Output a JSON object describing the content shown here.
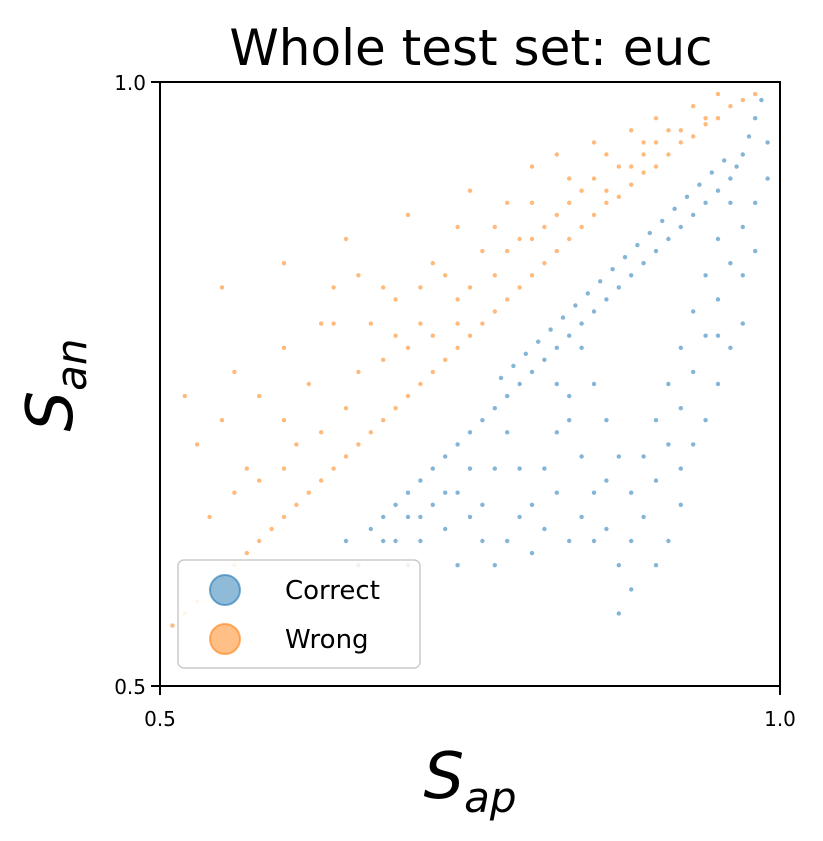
{
  "chart_data": {
    "type": "scatter",
    "title": "Whole test set: euc",
    "xlabel": {
      "main": "S",
      "sub": "ap"
    },
    "ylabel": {
      "main": "S",
      "sub": "an"
    },
    "xlim": [
      0.5,
      1.0
    ],
    "ylim": [
      0.5,
      1.0
    ],
    "xticks": [
      "0.5",
      "1.0"
    ],
    "yticks": [
      "0.5",
      "1.0"
    ],
    "grid": false,
    "legend_position": "lower-left",
    "series": [
      {
        "name": "Correct",
        "color": "#1f77b4",
        "points": [
          [
            0.985,
            0.985
          ],
          [
            0.98,
            0.97
          ],
          [
            0.975,
            0.955
          ],
          [
            0.97,
            0.94
          ],
          [
            0.965,
            0.93
          ],
          [
            0.96,
            0.92
          ],
          [
            0.955,
            0.935
          ],
          [
            0.95,
            0.91
          ],
          [
            0.945,
            0.925
          ],
          [
            0.94,
            0.9
          ],
          [
            0.935,
            0.915
          ],
          [
            0.93,
            0.89
          ],
          [
            0.925,
            0.905
          ],
          [
            0.92,
            0.88
          ],
          [
            0.915,
            0.895
          ],
          [
            0.91,
            0.87
          ],
          [
            0.905,
            0.885
          ],
          [
            0.9,
            0.86
          ],
          [
            0.895,
            0.875
          ],
          [
            0.89,
            0.85
          ],
          [
            0.885,
            0.865
          ],
          [
            0.88,
            0.84
          ],
          [
            0.875,
            0.855
          ],
          [
            0.87,
            0.83
          ],
          [
            0.865,
            0.845
          ],
          [
            0.86,
            0.82
          ],
          [
            0.855,
            0.835
          ],
          [
            0.85,
            0.81
          ],
          [
            0.845,
            0.825
          ],
          [
            0.84,
            0.8
          ],
          [
            0.835,
            0.815
          ],
          [
            0.83,
            0.79
          ],
          [
            0.825,
            0.805
          ],
          [
            0.82,
            0.78
          ],
          [
            0.815,
            0.795
          ],
          [
            0.81,
            0.77
          ],
          [
            0.805,
            0.785
          ],
          [
            0.8,
            0.76
          ],
          [
            0.795,
            0.775
          ],
          [
            0.79,
            0.75
          ],
          [
            0.785,
            0.765
          ],
          [
            0.78,
            0.74
          ],
          [
            0.775,
            0.755
          ],
          [
            0.77,
            0.73
          ],
          [
            0.76,
            0.72
          ],
          [
            0.75,
            0.71
          ],
          [
            0.74,
            0.7
          ],
          [
            0.73,
            0.69
          ],
          [
            0.72,
            0.68
          ],
          [
            0.71,
            0.67
          ],
          [
            0.7,
            0.66
          ],
          [
            0.69,
            0.65
          ],
          [
            0.68,
            0.64
          ],
          [
            0.67,
            0.63
          ],
          [
            0.97,
            0.88
          ],
          [
            0.96,
            0.85
          ],
          [
            0.95,
            0.82
          ],
          [
            0.94,
            0.79
          ],
          [
            0.93,
            0.76
          ],
          [
            0.92,
            0.73
          ],
          [
            0.91,
            0.7
          ],
          [
            0.9,
            0.67
          ],
          [
            0.89,
            0.64
          ],
          [
            0.88,
            0.62
          ],
          [
            0.87,
            0.6
          ],
          [
            0.86,
            0.63
          ],
          [
            0.85,
            0.66
          ],
          [
            0.84,
            0.69
          ],
          [
            0.83,
            0.72
          ],
          [
            0.82,
            0.75
          ],
          [
            0.96,
            0.9
          ],
          [
            0.95,
            0.87
          ],
          [
            0.94,
            0.84
          ],
          [
            0.93,
            0.81
          ],
          [
            0.92,
            0.78
          ],
          [
            0.91,
            0.75
          ],
          [
            0.9,
            0.72
          ],
          [
            0.89,
            0.69
          ],
          [
            0.88,
            0.66
          ],
          [
            0.87,
            0.69
          ],
          [
            0.86,
            0.72
          ],
          [
            0.85,
            0.75
          ],
          [
            0.84,
            0.78
          ],
          [
            0.83,
            0.74
          ],
          [
            0.82,
            0.71
          ],
          [
            0.81,
            0.68
          ],
          [
            0.8,
            0.65
          ],
          [
            0.79,
            0.68
          ],
          [
            0.78,
            0.71
          ],
          [
            0.77,
            0.68
          ],
          [
            0.76,
            0.65
          ],
          [
            0.75,
            0.68
          ],
          [
            0.74,
            0.66
          ],
          [
            0.73,
            0.63
          ],
          [
            0.72,
            0.65
          ],
          [
            0.71,
            0.62
          ],
          [
            0.7,
            0.6
          ],
          [
            0.69,
            0.62
          ],
          [
            0.97,
            0.8
          ],
          [
            0.98,
            0.9
          ],
          [
            0.99,
            0.95
          ],
          [
            0.95,
            0.79
          ],
          [
            0.92,
            0.68
          ],
          [
            0.91,
            0.62
          ],
          [
            0.9,
            0.6
          ],
          [
            0.88,
            0.58
          ],
          [
            0.87,
            0.56
          ],
          [
            0.86,
            0.67
          ],
          [
            0.85,
            0.62
          ],
          [
            0.84,
            0.64
          ],
          [
            0.83,
            0.62
          ],
          [
            0.82,
            0.66
          ],
          [
            0.81,
            0.63
          ],
          [
            0.8,
            0.61
          ],
          [
            0.79,
            0.64
          ],
          [
            0.78,
            0.62
          ],
          [
            0.77,
            0.6
          ],
          [
            0.76,
            0.62
          ],
          [
            0.75,
            0.64
          ],
          [
            0.74,
            0.6
          ],
          [
            0.73,
            0.66
          ],
          [
            0.71,
            0.64
          ],
          [
            0.7,
            0.64
          ],
          [
            0.68,
            0.62
          ],
          [
            0.66,
            0.6
          ],
          [
            0.65,
            0.62
          ],
          [
            0.94,
            0.72
          ],
          [
            0.93,
            0.7
          ],
          [
            0.92,
            0.65
          ],
          [
            0.95,
            0.75
          ],
          [
            0.96,
            0.78
          ],
          [
            0.97,
            0.84
          ],
          [
            0.98,
            0.86
          ],
          [
            0.99,
            0.92
          ]
        ]
      },
      {
        "name": "Wrong",
        "color": "#ff7f0e",
        "points": [
          [
            0.98,
            0.99
          ],
          [
            0.97,
            0.985
          ],
          [
            0.96,
            0.98
          ],
          [
            0.95,
            0.97
          ],
          [
            0.94,
            0.965
          ],
          [
            0.93,
            0.955
          ],
          [
            0.92,
            0.95
          ],
          [
            0.91,
            0.94
          ],
          [
            0.9,
            0.93
          ],
          [
            0.89,
            0.925
          ],
          [
            0.88,
            0.915
          ],
          [
            0.87,
            0.905
          ],
          [
            0.86,
            0.9
          ],
          [
            0.85,
            0.89
          ],
          [
            0.84,
            0.88
          ],
          [
            0.83,
            0.87
          ],
          [
            0.82,
            0.86
          ],
          [
            0.81,
            0.85
          ],
          [
            0.8,
            0.84
          ],
          [
            0.79,
            0.83
          ],
          [
            0.78,
            0.82
          ],
          [
            0.77,
            0.81
          ],
          [
            0.76,
            0.8
          ],
          [
            0.75,
            0.79
          ],
          [
            0.74,
            0.78
          ],
          [
            0.73,
            0.77
          ],
          [
            0.72,
            0.76
          ],
          [
            0.71,
            0.75
          ],
          [
            0.7,
            0.74
          ],
          [
            0.69,
            0.73
          ],
          [
            0.68,
            0.72
          ],
          [
            0.67,
            0.71
          ],
          [
            0.66,
            0.7
          ],
          [
            0.65,
            0.69
          ],
          [
            0.64,
            0.68
          ],
          [
            0.63,
            0.67
          ],
          [
            0.62,
            0.66
          ],
          [
            0.61,
            0.65
          ],
          [
            0.6,
            0.64
          ],
          [
            0.59,
            0.63
          ],
          [
            0.58,
            0.62
          ],
          [
            0.57,
            0.61
          ],
          [
            0.56,
            0.6
          ],
          [
            0.55,
            0.59
          ],
          [
            0.54,
            0.58
          ],
          [
            0.53,
            0.57
          ],
          [
            0.52,
            0.56
          ],
          [
            0.51,
            0.55
          ],
          [
            0.9,
            0.97
          ],
          [
            0.85,
            0.95
          ],
          [
            0.8,
            0.93
          ],
          [
            0.75,
            0.91
          ],
          [
            0.7,
            0.89
          ],
          [
            0.65,
            0.87
          ],
          [
            0.6,
            0.85
          ],
          [
            0.55,
            0.83
          ],
          [
            0.88,
            0.96
          ],
          [
            0.82,
            0.94
          ],
          [
            0.78,
            0.9
          ],
          [
            0.74,
            0.88
          ],
          [
            0.72,
            0.85
          ],
          [
            0.68,
            0.83
          ],
          [
            0.64,
            0.8
          ],
          [
            0.6,
            0.78
          ],
          [
            0.56,
            0.76
          ],
          [
            0.52,
            0.74
          ],
          [
            0.53,
            0.7
          ],
          [
            0.55,
            0.72
          ],
          [
            0.57,
            0.68
          ],
          [
            0.58,
            0.74
          ],
          [
            0.6,
            0.72
          ],
          [
            0.62,
            0.75
          ],
          [
            0.63,
            0.8
          ],
          [
            0.64,
            0.83
          ],
          [
            0.66,
            0.84
          ],
          [
            0.67,
            0.8
          ],
          [
            0.69,
            0.82
          ],
          [
            0.7,
            0.78
          ],
          [
            0.71,
            0.83
          ],
          [
            0.73,
            0.84
          ],
          [
            0.74,
            0.82
          ],
          [
            0.76,
            0.86
          ],
          [
            0.77,
            0.88
          ],
          [
            0.79,
            0.87
          ],
          [
            0.8,
            0.9
          ],
          [
            0.81,
            0.88
          ],
          [
            0.83,
            0.92
          ],
          [
            0.84,
            0.91
          ],
          [
            0.86,
            0.94
          ],
          [
            0.87,
            0.93
          ],
          [
            0.89,
            0.95
          ],
          [
            0.91,
            0.96
          ],
          [
            0.93,
            0.98
          ],
          [
            0.95,
            0.99
          ],
          [
            0.54,
            0.64
          ],
          [
            0.56,
            0.66
          ],
          [
            0.58,
            0.67
          ],
          [
            0.6,
            0.68
          ],
          [
            0.61,
            0.7
          ],
          [
            0.63,
            0.71
          ],
          [
            0.65,
            0.73
          ],
          [
            0.66,
            0.76
          ],
          [
            0.68,
            0.77
          ],
          [
            0.69,
            0.79
          ],
          [
            0.71,
            0.8
          ],
          [
            0.72,
            0.79
          ],
          [
            0.74,
            0.8
          ],
          [
            0.75,
            0.83
          ],
          [
            0.77,
            0.84
          ],
          [
            0.78,
            0.86
          ],
          [
            0.8,
            0.87
          ],
          [
            0.82,
            0.89
          ],
          [
            0.83,
            0.9
          ],
          [
            0.85,
            0.92
          ],
          [
            0.86,
            0.91
          ],
          [
            0.88,
            0.93
          ],
          [
            0.89,
            0.94
          ],
          [
            0.9,
            0.95
          ],
          [
            0.92,
            0.96
          ],
          [
            0.94,
            0.97
          ]
        ]
      }
    ]
  }
}
